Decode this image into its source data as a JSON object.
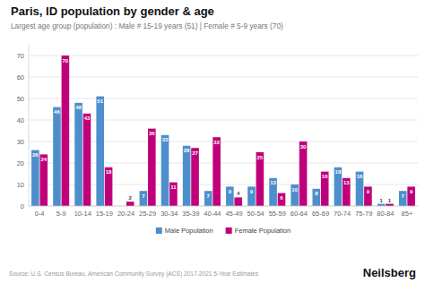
{
  "chart_data": {
    "type": "bar",
    "title": "Paris, ID population by gender & age",
    "subtitle": "Largest age group (population) : Male # 15-19 years (51) | Female # 5-9 years (70)",
    "annotations": [
      "Source: U.S. Census Bureau, American Community Survey (ACS) 2017-2021 5-Year Estimates",
      "Neilsberg"
    ],
    "categories": [
      "0-4",
      "5-9",
      "10-14",
      "15-19",
      "20-24",
      "25-29",
      "30-34",
      "35-39",
      "40-44",
      "45-49",
      "50-54",
      "55-59",
      "60-64",
      "65-69",
      "70-74",
      "75-79",
      "80-84",
      "85+"
    ],
    "series": [
      {
        "name": "Male Population",
        "color": "#4d8fcc",
        "values": [
          26,
          46,
          48,
          51,
          0,
          7,
          33,
          28,
          7,
          9,
          9,
          13,
          10,
          8,
          18,
          16,
          1,
          7
        ]
      },
      {
        "name": "Female Population",
        "color": "#c0007a",
        "values": [
          24,
          70,
          43,
          18,
          2,
          36,
          11,
          27,
          32,
          4,
          25,
          6,
          30,
          16,
          13,
          9,
          1,
          9
        ]
      }
    ],
    "ylim": [
      0,
      75
    ],
    "yticks": [
      0,
      10,
      20,
      30,
      40,
      50,
      60,
      70
    ],
    "grid": true,
    "data_labels": true,
    "legend": "bottom"
  }
}
